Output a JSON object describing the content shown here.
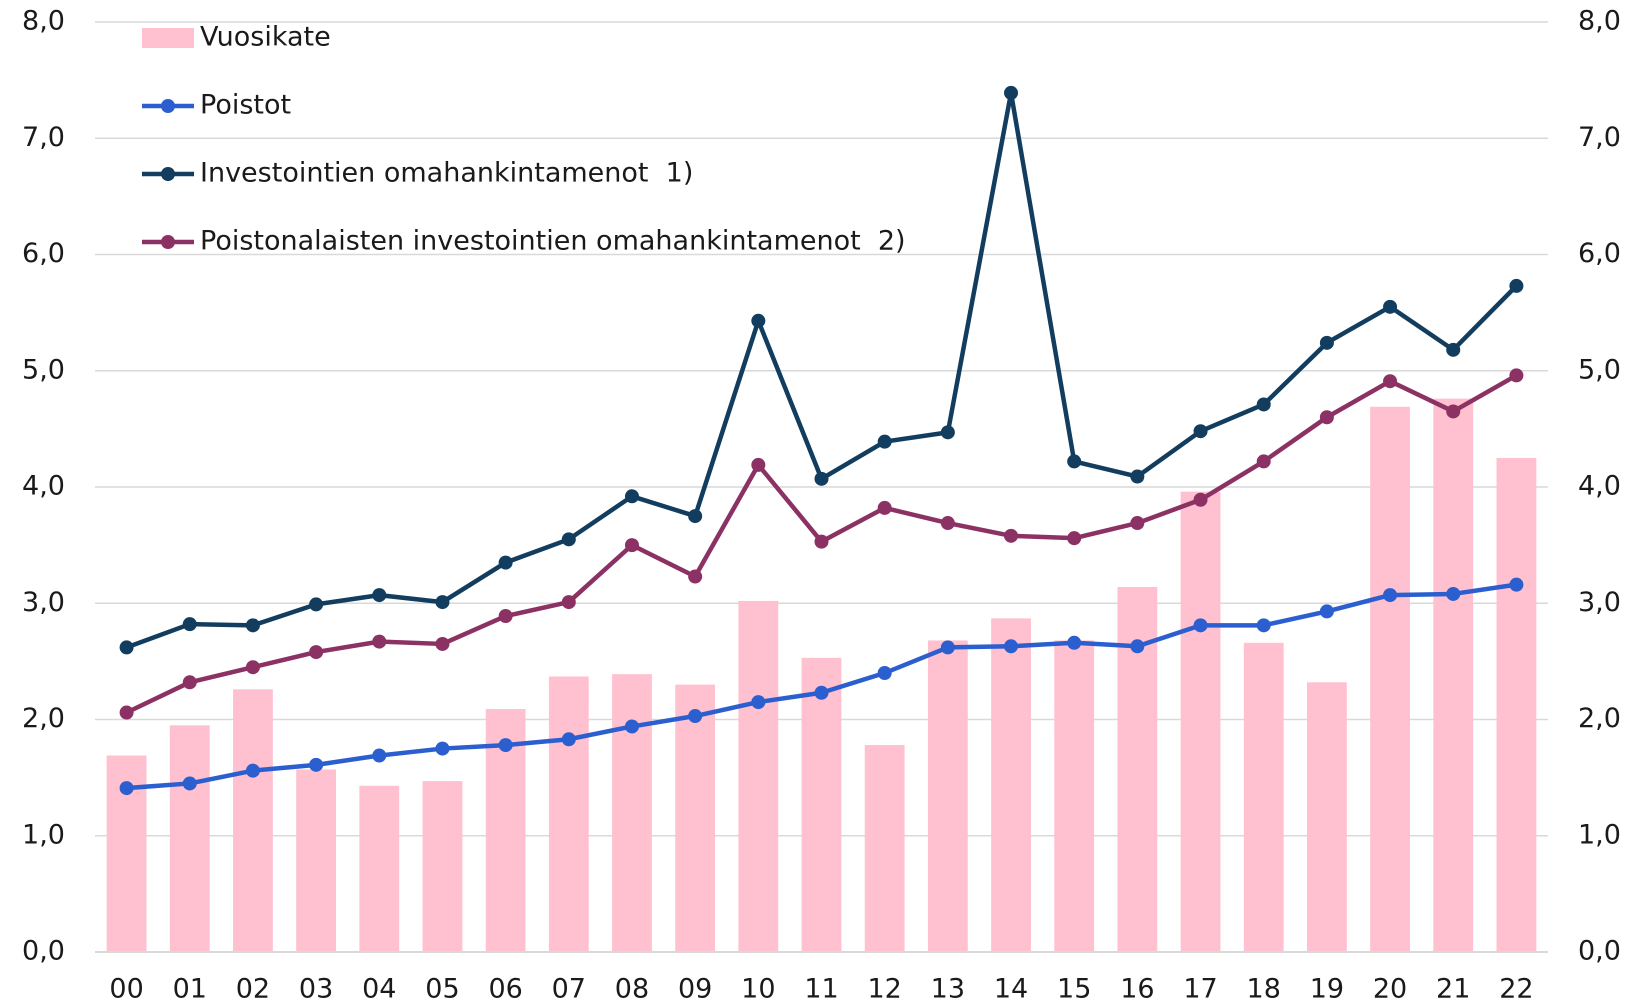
{
  "chart_data": {
    "type": "bar_line",
    "categories": [
      "00",
      "01",
      "02",
      "03",
      "04",
      "05",
      "06",
      "07",
      "08",
      "09",
      "10",
      "11",
      "12",
      "13",
      "14",
      "15",
      "16",
      "17",
      "18",
      "19",
      "20",
      "21",
      "22"
    ],
    "series": [
      {
        "name": "Vuosikate",
        "type": "bar",
        "color": "#ffc0cf",
        "values": [
          1.69,
          1.95,
          2.26,
          1.57,
          1.43,
          1.47,
          2.09,
          2.37,
          2.39,
          2.3,
          3.02,
          2.53,
          1.78,
          2.68,
          2.87,
          2.68,
          3.14,
          3.96,
          2.66,
          2.32,
          4.69,
          4.76,
          4.25
        ]
      },
      {
        "name": "Poistot",
        "type": "line",
        "color": "#2b5fd0",
        "values": [
          1.41,
          1.45,
          1.56,
          1.61,
          1.69,
          1.75,
          1.78,
          1.83,
          1.94,
          2.03,
          2.15,
          2.23,
          2.4,
          2.62,
          2.63,
          2.66,
          2.63,
          2.81,
          2.81,
          2.93,
          3.07,
          3.08,
          3.16
        ]
      },
      {
        "name": "Investointien omahankintamenot  1)",
        "type": "line",
        "color": "#123d5e",
        "values": [
          2.62,
          2.82,
          2.81,
          2.99,
          3.07,
          3.01,
          3.35,
          3.55,
          3.92,
          3.75,
          5.43,
          4.07,
          4.39,
          4.47,
          7.39,
          4.22,
          4.09,
          4.48,
          4.71,
          5.24,
          5.55,
          5.18,
          5.73
        ]
      },
      {
        "name": "Poistonalaisten investointien omahankintamenot  2)",
        "type": "line",
        "color": "#8b3163",
        "values": [
          2.06,
          2.32,
          2.45,
          2.58,
          2.67,
          2.65,
          2.89,
          3.01,
          3.5,
          3.23,
          4.19,
          3.53,
          3.82,
          3.69,
          3.58,
          3.56,
          3.69,
          3.89,
          4.22,
          4.6,
          4.91,
          4.65,
          4.96
        ]
      }
    ],
    "ylim": [
      0,
      8
    ],
    "yticks": [
      {
        "value": 0,
        "label": "0,0"
      },
      {
        "value": 1,
        "label": "1,0"
      },
      {
        "value": 2,
        "label": "2,0"
      },
      {
        "value": 3,
        "label": "3,0"
      },
      {
        "value": 4,
        "label": "4,0"
      },
      {
        "value": 5,
        "label": "5,0"
      },
      {
        "value": 6,
        "label": "6,0"
      },
      {
        "value": 7,
        "label": "7,0"
      },
      {
        "value": 8,
        "label": "8,0"
      }
    ],
    "y2lim": [
      0,
      8
    ],
    "y2ticks": [
      {
        "value": 0,
        "label": "0,0"
      },
      {
        "value": 1,
        "label": "1,0"
      },
      {
        "value": 2,
        "label": "2,0"
      },
      {
        "value": 3,
        "label": "3,0"
      },
      {
        "value": 4,
        "label": "4,0"
      },
      {
        "value": 5,
        "label": "5,0"
      },
      {
        "value": 6,
        "label": "6,0"
      },
      {
        "value": 7,
        "label": "7,0"
      },
      {
        "value": 8,
        "label": "8,0"
      }
    ],
    "grid": true,
    "legend": "upper-left"
  }
}
